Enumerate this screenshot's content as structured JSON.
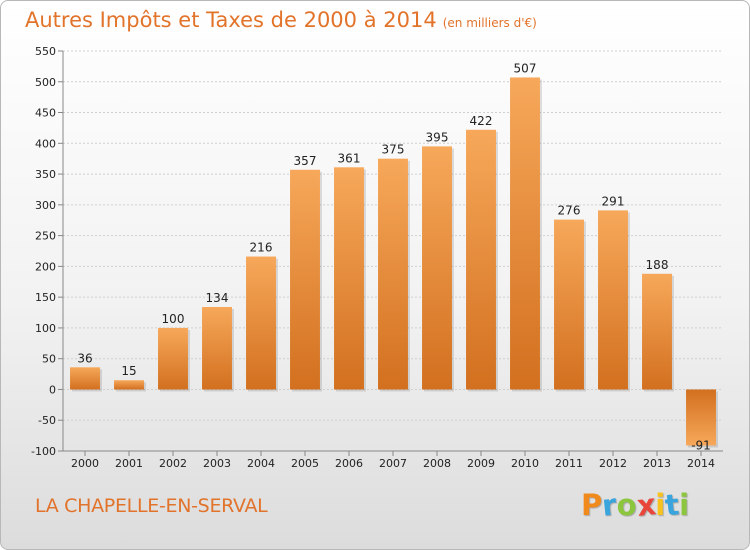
{
  "chart_data": {
    "type": "bar",
    "title": "Autres Impôts et Taxes de 2000 à 2014",
    "subtitle": "(en milliers d'€)",
    "categories": [
      "2000",
      "2001",
      "2002",
      "2003",
      "2004",
      "2005",
      "2006",
      "2007",
      "2008",
      "2009",
      "2010",
      "2011",
      "2012",
      "2013",
      "2014"
    ],
    "values": [
      36,
      15,
      100,
      134,
      216,
      357,
      361,
      375,
      395,
      422,
      507,
      276,
      291,
      188,
      -91
    ],
    "value_labels": [
      "36",
      "15",
      "100",
      "134",
      "216",
      "357",
      "361",
      "375",
      "395",
      "422",
      "507",
      "276",
      "291",
      "188",
      "-91"
    ],
    "ylim": [
      -100,
      550
    ],
    "yticks": [
      -100,
      -50,
      0,
      50,
      100,
      150,
      200,
      250,
      300,
      350,
      400,
      450,
      500,
      550
    ],
    "grid": true,
    "bar_color_light": "#f7a85a",
    "bar_color_dark": "#d2701f"
  },
  "footer": {
    "city": "LA CHAPELLE-EN-SERVAL",
    "brand": "Proxiti",
    "brand_letter_colors": [
      "#f08a1d",
      "#3aa4dc",
      "#8cc63f",
      "#e8463a",
      "#f7c21b",
      "#3aa4dc",
      "#8cc63f"
    ]
  }
}
